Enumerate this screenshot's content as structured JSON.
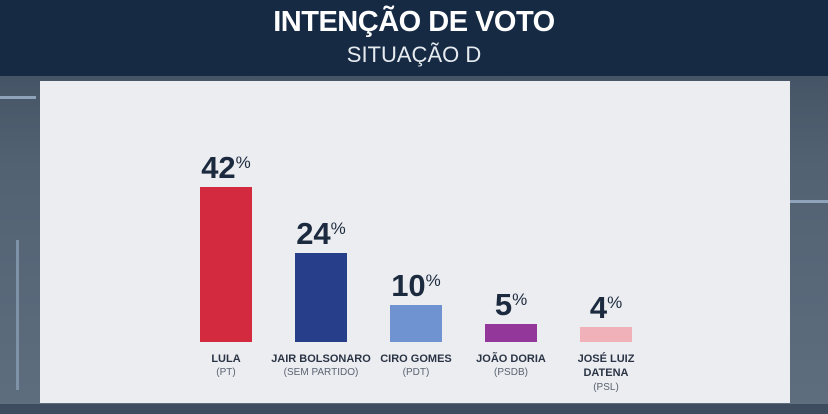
{
  "header": {
    "title": "INTENÇÃO DE VOTO",
    "subtitle": "SITUAÇÃO D"
  },
  "chart_data": {
    "type": "bar",
    "title": "INTENÇÃO DE VOTO",
    "subtitle": "SITUAÇÃO D",
    "xlabel": "",
    "ylabel": "",
    "unit": "%",
    "ylim": [
      0,
      42
    ],
    "grid": false,
    "categories": [
      "LULA",
      "JAIR BOLSONARO",
      "CIRO GOMES",
      "JOÃO DORIA",
      "JOSÉ LUIZ DATENA"
    ],
    "parties": [
      "(PT)",
      "(SEM PARTIDO)",
      "(PDT)",
      "(PSDB)",
      "(PSL)"
    ],
    "values": [
      42,
      24,
      10,
      5,
      4
    ],
    "colors": [
      "#d42a3f",
      "#273f8b",
      "#6f92d0",
      "#93389a",
      "#f0b2b8"
    ]
  }
}
